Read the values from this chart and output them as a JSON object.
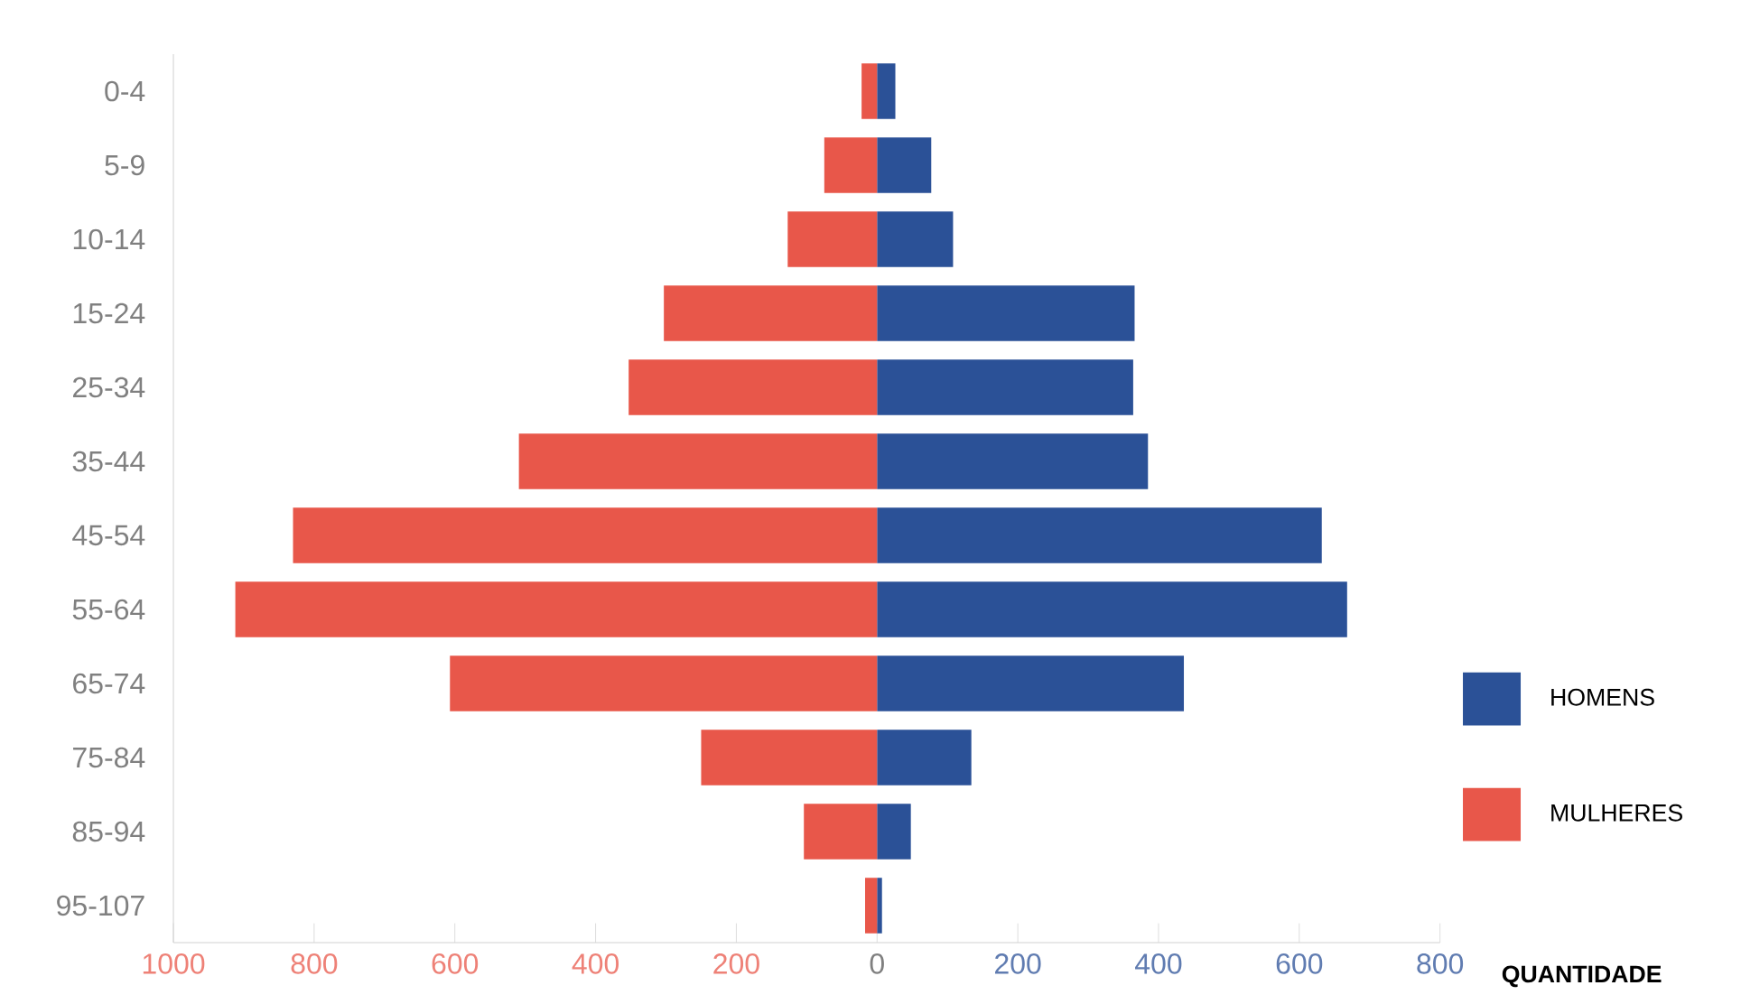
{
  "chart_data": {
    "type": "bar",
    "orientation": "horizontal",
    "stacked": true,
    "xlabel": "QUANTIDADE",
    "categories": [
      "0-4",
      "5-9",
      "10-14",
      "15-24",
      "25-34",
      "35-44",
      "45-54",
      "55-64",
      "65-74",
      "75-84",
      "85-94",
      "95-107"
    ],
    "series": [
      {
        "name": "HOMENS",
        "color": "#2b5197",
        "values": [
          26,
          77,
          108,
          366,
          364,
          385,
          632,
          668,
          436,
          134,
          48,
          7
        ]
      },
      {
        "name": "MULHERES",
        "color": "#e8574a",
        "values": [
          -22,
          -75,
          -127,
          -303,
          -353,
          -509,
          -830,
          -912,
          -607,
          -250,
          -104,
          -17
        ]
      }
    ],
    "xlim": [
      -1000,
      800
    ],
    "xticks": [
      {
        "value": -1000,
        "label": "1000"
      },
      {
        "value": -800,
        "label": "800"
      },
      {
        "value": -600,
        "label": "600"
      },
      {
        "value": -400,
        "label": "400"
      },
      {
        "value": -200,
        "label": "200"
      },
      0,
      200,
      400,
      600,
      800
    ],
    "legend": "right",
    "grid": false
  }
}
